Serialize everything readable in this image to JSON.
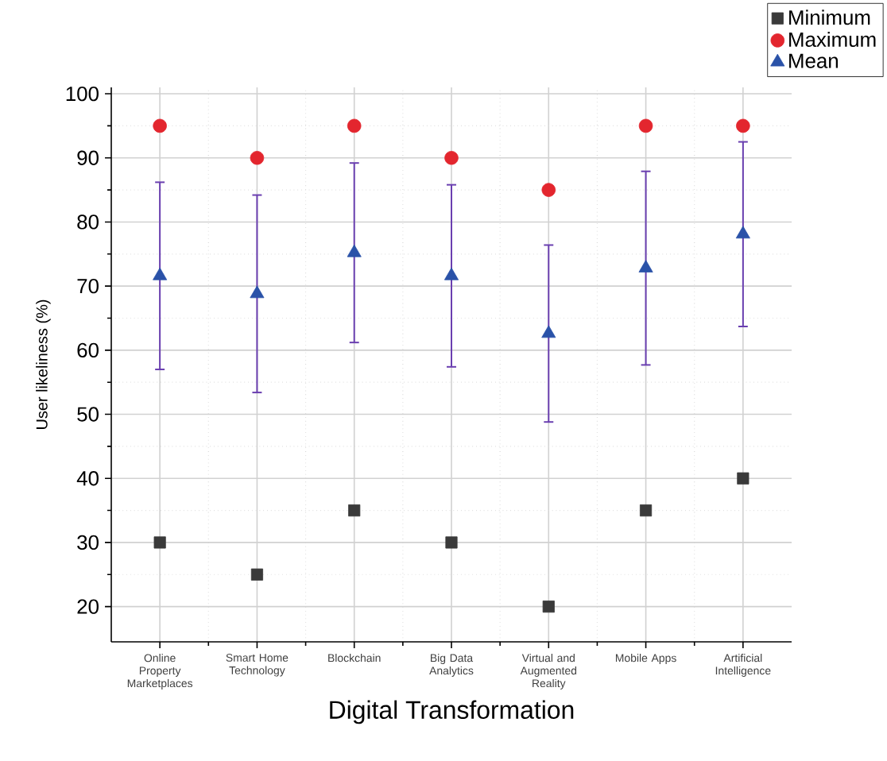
{
  "chart_data": {
    "type": "scatter",
    "xlabel": "Digital Transformation",
    "ylabel": "User likeliness (%)",
    "categories": [
      "Online Property Marketplaces",
      "Smart Home Technology",
      "Blockchain",
      "Big Data Analytics",
      "Virtual and Augmented Reality",
      "Mobile Apps",
      "Artificial Intelligence"
    ],
    "series": [
      {
        "name": "Minimum",
        "color": "#3a3a3a",
        "marker": "square",
        "values": [
          30,
          25,
          35,
          30,
          20,
          35,
          40
        ]
      },
      {
        "name": "Maximum",
        "color": "#e3262e",
        "marker": "circle",
        "values": [
          95,
          90,
          95,
          90,
          85,
          95,
          95
        ]
      },
      {
        "name": "Mean",
        "color": "#2a52a8",
        "marker": "triangle",
        "values": [
          71.6,
          68.8,
          75.2,
          71.6,
          62.6,
          72.8,
          78.1
        ],
        "errors": [
          14.6,
          15.4,
          14.0,
          14.2,
          13.8,
          15.1,
          14.4
        ]
      }
    ],
    "ylim": [
      14.5,
      101
    ],
    "yticks": [
      20,
      30,
      40,
      50,
      60,
      70,
      80,
      90,
      100
    ],
    "grid": true,
    "legend": "top right"
  }
}
